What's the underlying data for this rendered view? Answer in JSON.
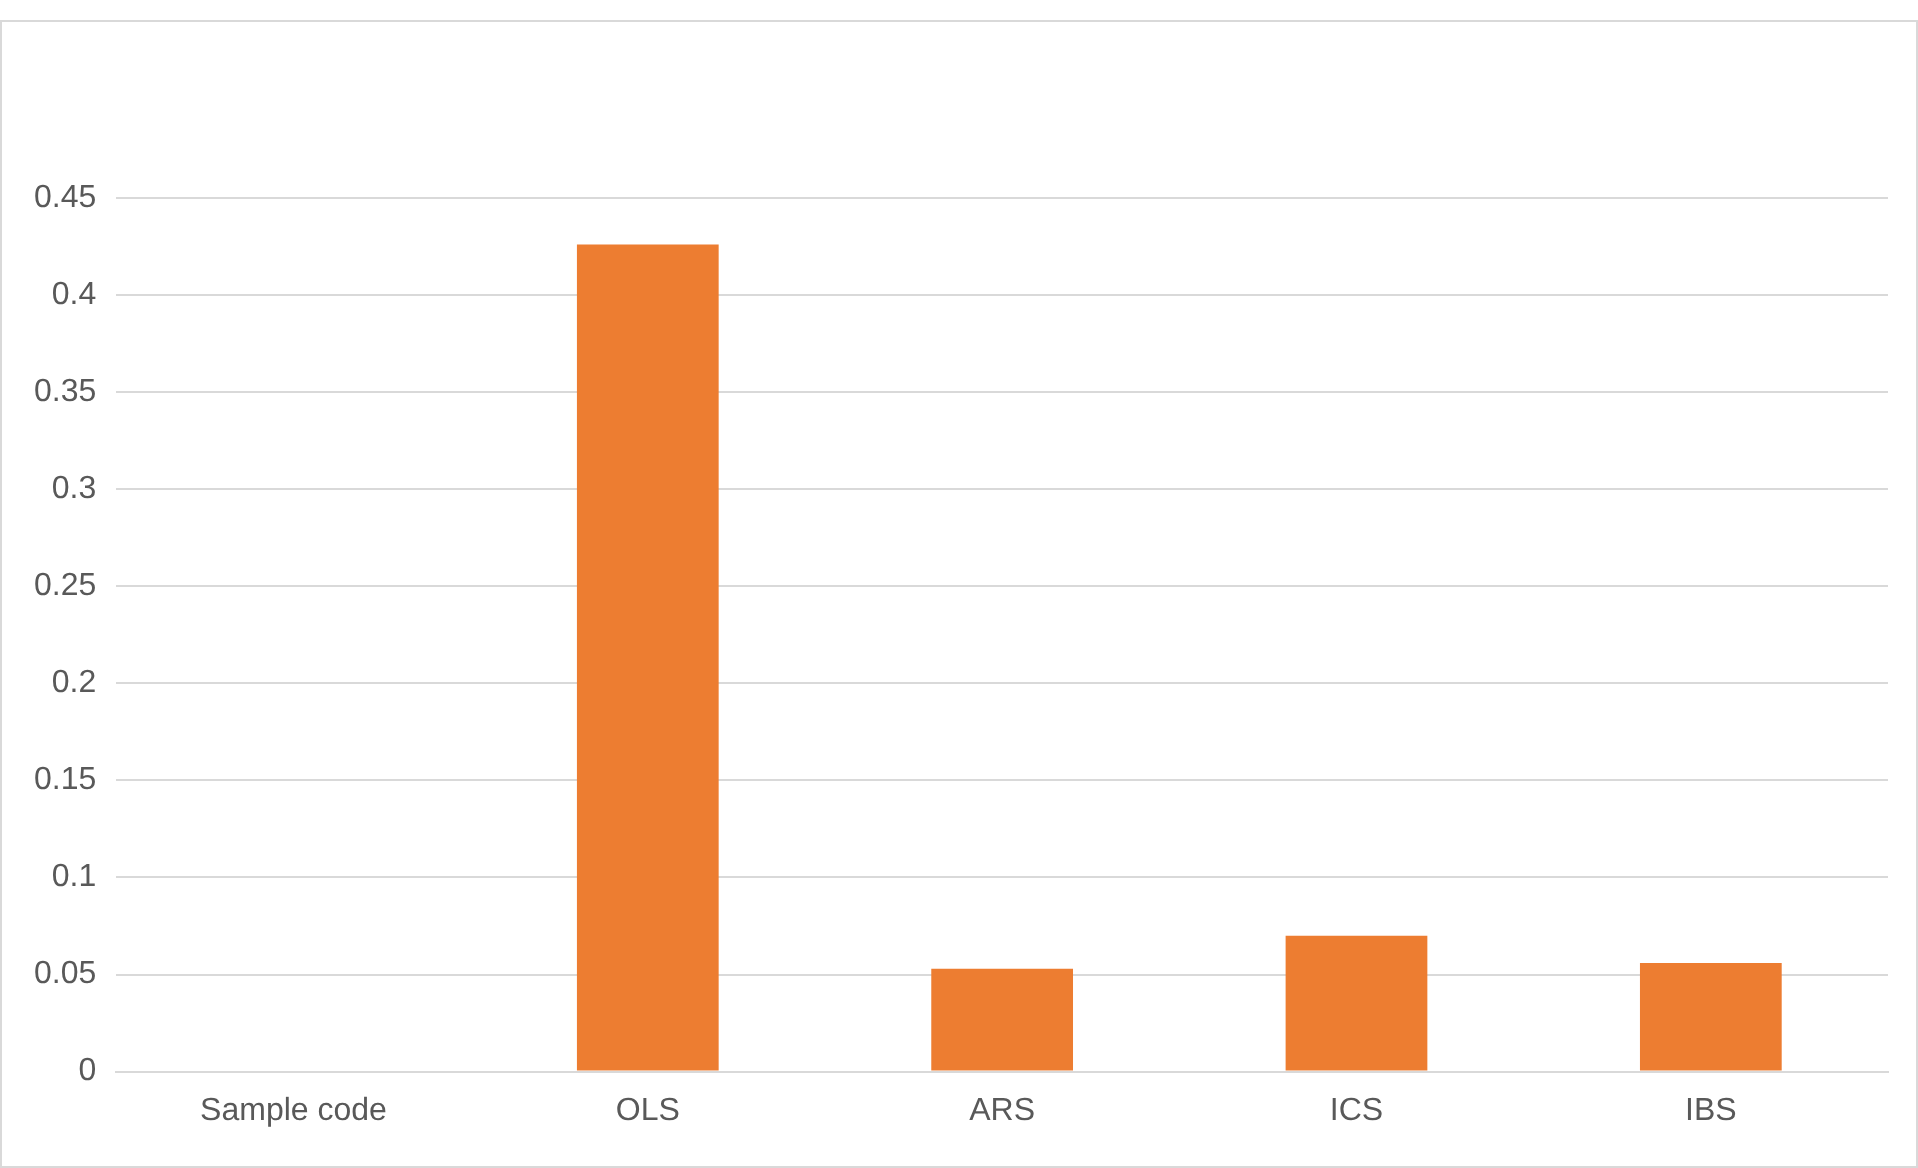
{
  "chart_data": {
    "type": "bar",
    "categories": [
      "Sample code",
      "OLS",
      "ARS",
      "ICS",
      "IBS"
    ],
    "values": [
      null,
      0.426,
      0.053,
      0.07,
      0.056
    ],
    "color": "#ed7d31",
    "ylim": [
      0,
      0.45
    ],
    "yticks": [
      0,
      0.05,
      {
        "value": 0.1,
        "label": "0.1"
      },
      0.15,
      {
        "value": 0.2,
        "label": "0.2"
      },
      0.25,
      {
        "value": 0.3,
        "label": "0.3"
      },
      0.35,
      {
        "value": 0.4,
        "label": "0.4"
      },
      0.45
    ],
    "grid": "y",
    "legend": false
  }
}
